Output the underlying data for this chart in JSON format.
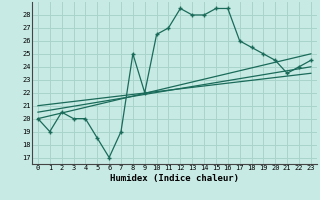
{
  "xlabel": "Humidex (Indice chaleur)",
  "bg_color": "#c8eae4",
  "grid_color": "#a8d4cc",
  "line_color": "#1a6b5a",
  "x_ticks": [
    0,
    1,
    2,
    3,
    4,
    5,
    6,
    7,
    8,
    9,
    10,
    11,
    12,
    13,
    14,
    15,
    16,
    17,
    18,
    19,
    20,
    21,
    22,
    23
  ],
  "y_ticks": [
    17,
    18,
    19,
    20,
    21,
    22,
    23,
    24,
    25,
    26,
    27,
    28
  ],
  "ylim": [
    16.5,
    29.0
  ],
  "xlim": [
    -0.5,
    23.5
  ],
  "main_x": [
    0,
    1,
    2,
    3,
    4,
    5,
    6,
    7,
    8,
    9,
    10,
    11,
    12,
    13,
    14,
    15,
    16,
    17,
    18,
    19,
    20,
    21,
    22,
    23
  ],
  "main_y": [
    20,
    19,
    20.5,
    20,
    20,
    18.5,
    17,
    19,
    25,
    22,
    26.5,
    27,
    28.5,
    28,
    28,
    28.5,
    28.5,
    26,
    25.5,
    25,
    24.5,
    23.5,
    24,
    24.5
  ],
  "line1_x": [
    0,
    23
  ],
  "line1_y": [
    20.0,
    25.0
  ],
  "line2_x": [
    0,
    23
  ],
  "line2_y": [
    20.5,
    24.0
  ],
  "line3_x": [
    0,
    23
  ],
  "line3_y": [
    21.0,
    23.5
  ]
}
